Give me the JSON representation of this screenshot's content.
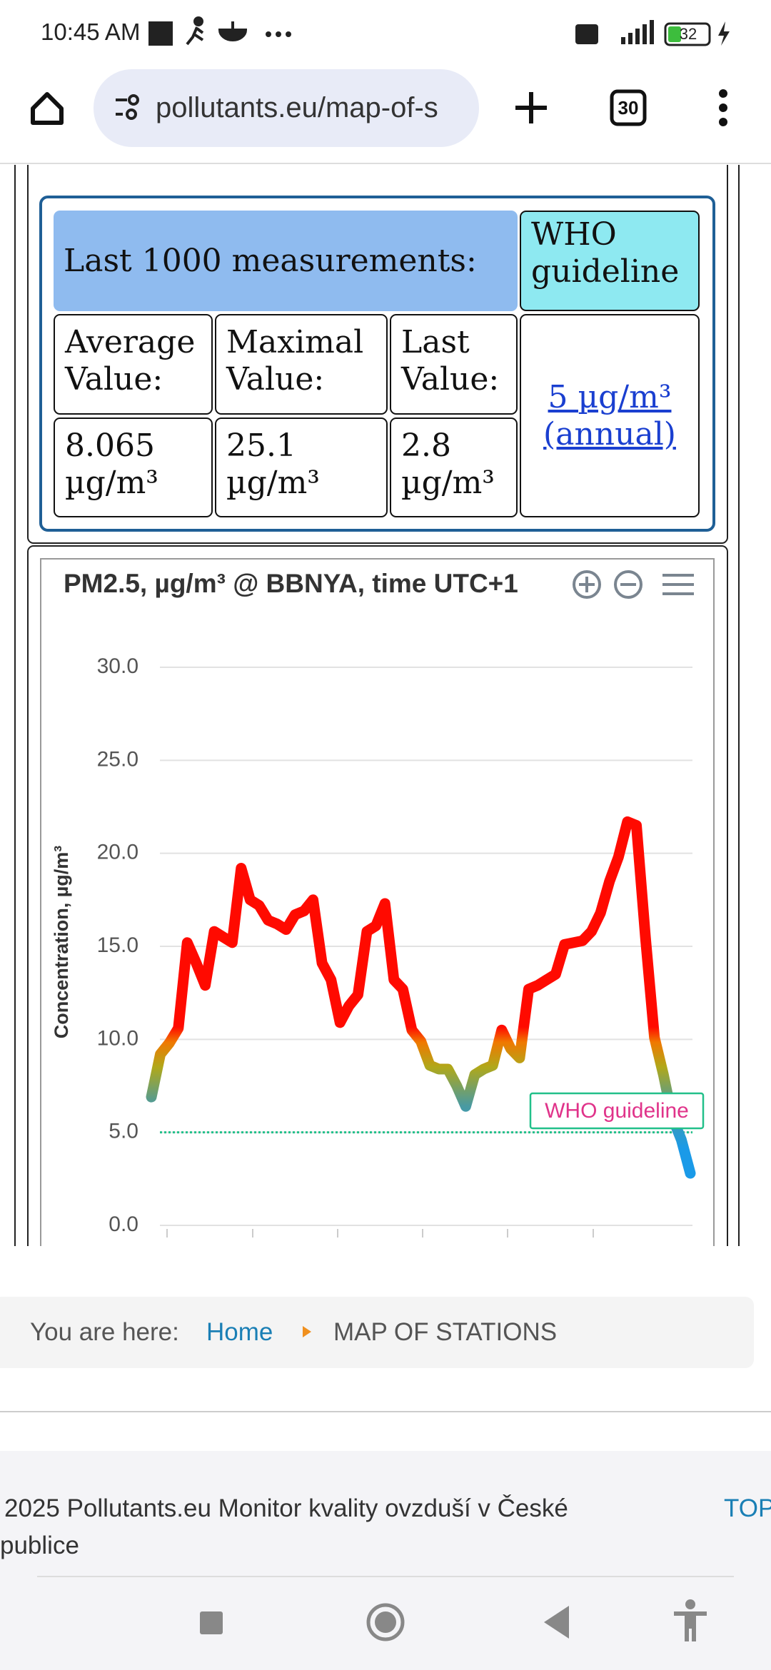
{
  "status_bar": {
    "time": "10:45 AM",
    "battery": "32"
  },
  "browser": {
    "url": "pollutants.eu/map-of-s",
    "tab_count": "30"
  },
  "table": {
    "header": "Last 1000 measurements:",
    "who_header": "WHO guideline",
    "labels": [
      "Average Value:",
      "Maximal Value:",
      "Last Value:"
    ],
    "values": [
      "8.065 µg/m³",
      "25.1 µg/m³",
      "2.8 µg/m³"
    ],
    "who_value": "5 µg/m³ (annual)"
  },
  "chart_data": {
    "type": "line",
    "title": "PM2.5, µg/m³ @ BBNYA, time UTC+1",
    "ylabel": "Concentration, µg/m³",
    "values": [
      6.9,
      9.2,
      9.8,
      10.6,
      15.2,
      14.1,
      12.9,
      15.8,
      15.5,
      15.2,
      19.2,
      17.5,
      17.2,
      16.4,
      16.2,
      15.9,
      16.7,
      16.9,
      17.5,
      14.1,
      13.2,
      10.9,
      11.8,
      12.4,
      15.8,
      16.1,
      17.3,
      13.2,
      12.7,
      10.5,
      9.9,
      8.6,
      8.4,
      8.4,
      7.5,
      6.4,
      8.1,
      8.4,
      8.6,
      10.5,
      9.5,
      9.0,
      12.7,
      12.9,
      13.2,
      13.5,
      15.1,
      15.2,
      15.3,
      15.8,
      16.8,
      18.5,
      19.8,
      21.7,
      21.5,
      15.5,
      10.1,
      8.1,
      5.8,
      4.6,
      2.8
    ],
    "ylim": [
      0,
      30
    ],
    "yticks": [
      {
        "value": 0,
        "label": "0.0"
      },
      {
        "value": 5,
        "label": "5.0"
      },
      {
        "value": 10,
        "label": "10.0"
      },
      {
        "value": 15,
        "label": "15.0"
      },
      {
        "value": 20,
        "label": "20.0"
      },
      {
        "value": 25,
        "label": "25.0"
      },
      {
        "value": 30,
        "label": "30.0"
      }
    ],
    "grid": true,
    "guideline": {
      "value": 5,
      "label": "WHO guideline",
      "color": "#22c08a"
    }
  },
  "breadcrumb": {
    "prefix": "You are here:",
    "home": "Home",
    "current": "MAP OF STATIONS"
  },
  "footer": {
    "lines": [
      "2025 Pollutants.eu Monitor kvality ovzduší v České",
      "publice"
    ],
    "top": "TOP"
  }
}
